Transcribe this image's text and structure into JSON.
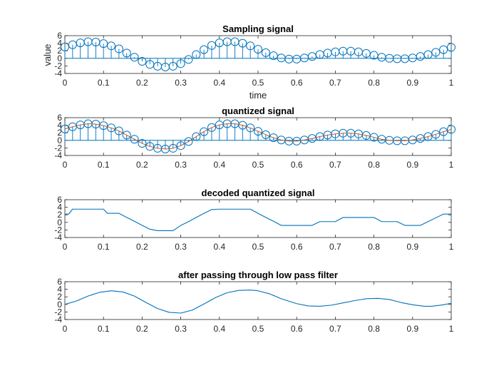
{
  "figure": {
    "background": "#ffffff",
    "series_color": "#0072BD",
    "quantized_color": "#D95319"
  },
  "chart_data": [
    {
      "id": "sampling",
      "type": "stem",
      "title": "Sampling signal",
      "xlabel": "time",
      "ylabel": "value",
      "xlim": [
        0,
        1
      ],
      "ylim": [
        -4,
        6
      ],
      "xticks": [
        0,
        0.1,
        0.2,
        0.3,
        0.4,
        0.5,
        0.6,
        0.7,
        0.8,
        0.9,
        1
      ],
      "yticks": [
        -4,
        -2,
        0,
        2,
        4,
        6
      ],
      "series": [
        {
          "x": [
            0,
            0.02,
            0.04,
            0.06,
            0.08,
            0.1,
            0.12,
            0.14,
            0.16,
            0.18,
            0.2,
            0.22,
            0.24,
            0.26,
            0.28,
            0.3,
            0.32,
            0.34,
            0.36,
            0.38,
            0.4,
            0.42,
            0.44,
            0.46,
            0.48,
            0.5,
            0.52,
            0.54,
            0.56,
            0.58,
            0.6,
            0.62,
            0.64,
            0.66,
            0.68,
            0.7,
            0.72,
            0.74,
            0.76,
            0.78,
            0.8,
            0.82,
            0.84,
            0.86,
            0.88,
            0.9,
            0.92,
            0.94,
            0.96,
            0.98,
            1
          ],
          "y": [
            3,
            3.6,
            4.1,
            4.4,
            4.3,
            3.9,
            3.3,
            2.5,
            1.4,
            0.3,
            -0.8,
            -1.6,
            -2.1,
            -2.3,
            -2.1,
            -1.4,
            -0.3,
            1,
            2.3,
            3.4,
            4.1,
            4.4,
            4.4,
            4,
            3.3,
            2.4,
            1.5,
            0.7,
            0.1,
            -0.2,
            -0.2,
            0.1,
            0.5,
            1,
            1.4,
            1.7,
            1.9,
            1.9,
            1.7,
            1.3,
            0.8,
            0.3,
            0,
            -0.1,
            -0.1,
            0.1,
            0.5,
            1,
            1.6,
            2.3,
            2.9
          ]
        }
      ]
    },
    {
      "id": "quantized",
      "type": "stem",
      "title": "quantized signal",
      "xlabel": "",
      "ylabel": "",
      "xlim": [
        0,
        1
      ],
      "ylim": [
        -4,
        6
      ],
      "xticks": [
        0,
        0.1,
        0.2,
        0.3,
        0.4,
        0.5,
        0.6,
        0.7,
        0.8,
        0.9,
        1
      ],
      "yticks": [
        -4,
        -2,
        0,
        2,
        4,
        6
      ],
      "series": [
        {
          "x": [
            0,
            0.02,
            0.04,
            0.06,
            0.08,
            0.1,
            0.12,
            0.14,
            0.16,
            0.18,
            0.2,
            0.22,
            0.24,
            0.26,
            0.28,
            0.3,
            0.32,
            0.34,
            0.36,
            0.38,
            0.4,
            0.42,
            0.44,
            0.46,
            0.48,
            0.5,
            0.52,
            0.54,
            0.56,
            0.58,
            0.6,
            0.62,
            0.64,
            0.66,
            0.68,
            0.7,
            0.72,
            0.74,
            0.76,
            0.78,
            0.8,
            0.82,
            0.84,
            0.86,
            0.88,
            0.9,
            0.92,
            0.94,
            0.96,
            0.98,
            1
          ],
          "y": [
            3,
            3.6,
            4.1,
            4.4,
            4.3,
            3.9,
            3.3,
            2.5,
            1.4,
            0.3,
            -0.8,
            -1.6,
            -2.1,
            -2.3,
            -2.1,
            -1.4,
            -0.3,
            1,
            2.3,
            3.4,
            4.1,
            4.4,
            4.4,
            4,
            3.3,
            2.4,
            1.5,
            0.7,
            0.1,
            -0.2,
            -0.2,
            0.1,
            0.5,
            1,
            1.4,
            1.7,
            1.9,
            1.9,
            1.7,
            1.3,
            0.8,
            0.3,
            0,
            -0.1,
            -0.1,
            0.1,
            0.5,
            1,
            1.6,
            2.3,
            2.9
          ]
        }
      ]
    },
    {
      "id": "decoded",
      "type": "line",
      "title": "decoded quantized signal",
      "xlabel": "",
      "ylabel": "",
      "xlim": [
        0,
        1
      ],
      "ylim": [
        -4,
        6
      ],
      "xticks": [
        0,
        0.1,
        0.2,
        0.3,
        0.4,
        0.5,
        0.6,
        0.7,
        0.8,
        0.9,
        1
      ],
      "yticks": [
        -4,
        -2,
        0,
        2,
        4,
        6
      ],
      "series": [
        {
          "x": [
            0,
            0.01,
            0.02,
            0.03,
            0.1,
            0.11,
            0.14,
            0.16,
            0.18,
            0.2,
            0.22,
            0.24,
            0.28,
            0.3,
            0.32,
            0.34,
            0.36,
            0.38,
            0.4,
            0.48,
            0.5,
            0.52,
            0.54,
            0.56,
            0.6,
            0.64,
            0.66,
            0.7,
            0.72,
            0.74,
            0.8,
            0.82,
            0.86,
            0.88,
            0.92,
            0.94,
            0.96,
            0.98,
            1
          ],
          "y": [
            2.2,
            2.2,
            3.5,
            3.5,
            3.5,
            2.4,
            2.4,
            1.3,
            0.3,
            -0.8,
            -1.8,
            -2.2,
            -2.2,
            -0.8,
            0.2,
            1.3,
            2.4,
            3.4,
            3.5,
            3.5,
            2.4,
            1.3,
            0.3,
            -0.8,
            -0.8,
            -0.8,
            0.2,
            0.2,
            1.3,
            1.3,
            1.3,
            0.2,
            0.2,
            -0.8,
            -0.8,
            0.2,
            1.2,
            2.2,
            2.2
          ]
        }
      ]
    },
    {
      "id": "filtered",
      "type": "line",
      "title": "after passing through low pass filter",
      "xlabel": "",
      "ylabel": "",
      "xlim": [
        0,
        1
      ],
      "ylim": [
        -4,
        6
      ],
      "xticks": [
        0,
        0.1,
        0.2,
        0.3,
        0.4,
        0.5,
        0.6,
        0.7,
        0.8,
        0.9,
        1
      ],
      "yticks": [
        -4,
        -2,
        0,
        2,
        4,
        6
      ],
      "series": [
        {
          "x": [
            0,
            0.03,
            0.06,
            0.09,
            0.12,
            0.15,
            0.18,
            0.21,
            0.24,
            0.27,
            0.3,
            0.33,
            0.36,
            0.39,
            0.42,
            0.45,
            0.48,
            0.5,
            0.53,
            0.56,
            0.6,
            0.63,
            0.66,
            0.69,
            0.72,
            0.75,
            0.78,
            0.81,
            0.84,
            0.87,
            0.9,
            0.93,
            0.95,
            0.98,
            1
          ],
          "y": [
            0,
            0.9,
            2.2,
            3.2,
            3.6,
            3.3,
            2.2,
            0.5,
            -1.1,
            -2.1,
            -2.3,
            -1.5,
            0.1,
            1.8,
            3.1,
            3.7,
            3.8,
            3.6,
            2.8,
            1.5,
            0.2,
            -0.4,
            -0.5,
            -0.2,
            0.4,
            1,
            1.5,
            1.6,
            1.3,
            0.5,
            -0.1,
            -0.5,
            -0.5,
            -0.1,
            0.3
          ]
        }
      ]
    }
  ]
}
